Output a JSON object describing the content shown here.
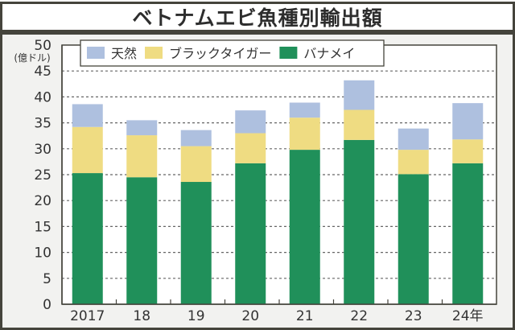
{
  "chart_data": {
    "type": "bar",
    "stacked": true,
    "title": "ベトナムエビ魚種別輸出額",
    "ylabel": "(億ドル)",
    "xlabel": "",
    "ylim": [
      0,
      50
    ],
    "yticks": [
      0,
      5,
      10,
      15,
      20,
      25,
      30,
      35,
      40,
      45,
      50
    ],
    "ytick_labels": [
      "0",
      "5",
      "10",
      "15",
      "20",
      "25",
      "30",
      "35",
      "40",
      "45",
      "50"
    ],
    "grid": true,
    "legend_position": "top-left",
    "categories": [
      "2017",
      "18",
      "19",
      "20",
      "21",
      "22",
      "23",
      "24年"
    ],
    "series": [
      {
        "name": "バナメイ",
        "color": "#20905a",
        "values": [
          25.3,
          24.5,
          23.6,
          27.2,
          29.8,
          31.7,
          25.1,
          27.2
        ]
      },
      {
        "name": "ブラックタイガー",
        "color": "#efdc82",
        "values": [
          8.9,
          8.1,
          6.9,
          5.8,
          6.2,
          5.8,
          4.7,
          4.6
        ]
      },
      {
        "name": "天然",
        "color": "#aec0df",
        "values": [
          4.4,
          2.9,
          3.1,
          4.4,
          2.9,
          5.7,
          4.1,
          7.0
        ]
      }
    ],
    "legend_order": [
      "天然",
      "ブラックタイガー",
      "バナメイ"
    ]
  }
}
